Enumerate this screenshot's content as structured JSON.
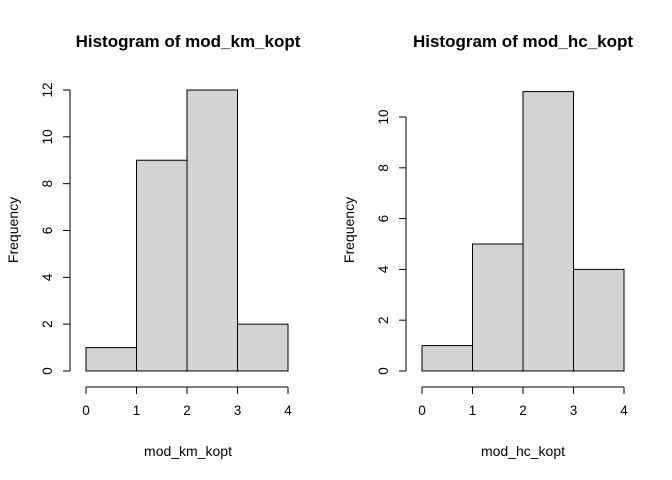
{
  "chart_data": [
    {
      "type": "histogram",
      "title": "Histogram of mod_km_kopt",
      "xlabel": "mod_km_kopt",
      "ylabel": "Frequency",
      "bins": [
        [
          0,
          1
        ],
        [
          1,
          2
        ],
        [
          2,
          3
        ],
        [
          3,
          4
        ]
      ],
      "values": [
        1,
        9,
        12,
        2
      ],
      "xlim": [
        0,
        4
      ],
      "ylim": [
        0,
        12
      ],
      "xticks": [
        "0",
        "1",
        "2",
        "3",
        "4"
      ],
      "yticks": [
        "0",
        "2",
        "4",
        "6",
        "8",
        "10",
        "12"
      ],
      "bar_color": "#d3d3d3",
      "grid": false
    },
    {
      "type": "histogram",
      "title": "Histogram of mod_hc_kopt",
      "xlabel": "mod_hc_kopt",
      "ylabel": "Frequency",
      "bins": [
        [
          0,
          1
        ],
        [
          1,
          2
        ],
        [
          2,
          3
        ],
        [
          3,
          4
        ]
      ],
      "values": [
        1,
        5,
        11,
        4
      ],
      "xlim": [
        0,
        4
      ],
      "ylim": [
        0,
        10
      ],
      "xticks": [
        "0",
        "1",
        "2",
        "3",
        "4"
      ],
      "yticks": [
        "0",
        "2",
        "4",
        "6",
        "8",
        "10"
      ],
      "bar_color": "#d3d3d3",
      "grid": false
    }
  ]
}
